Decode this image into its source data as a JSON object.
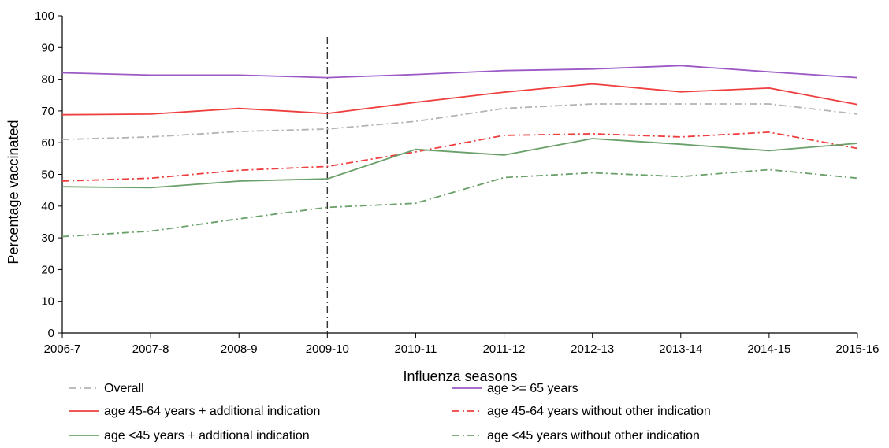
{
  "chart_data": {
    "type": "line",
    "title": "",
    "xlabel": "Influenza seasons",
    "ylabel": "Percentage vaccinated",
    "categories": [
      "2006-7",
      "2007-8",
      "2008-9",
      "2009-10",
      "2010-11",
      "2011-12",
      "2012-13",
      "2013-14",
      "2014-15",
      "2015-16"
    ],
    "ylim": [
      0,
      100
    ],
    "yticks": [
      0,
      10,
      20,
      30,
      40,
      50,
      60,
      70,
      80,
      90,
      100
    ],
    "grid": false,
    "legend_position": "bottom",
    "reference_line": {
      "category": "2009-10",
      "style": "dash-dot",
      "color": "#333333"
    },
    "series": [
      {
        "name": "Overall",
        "color": "#b3b3b3",
        "style": "dash-dot",
        "values": [
          61.0,
          61.8,
          63.5,
          64.3,
          66.7,
          70.8,
          72.2,
          72.2,
          72.2,
          69.0
        ]
      },
      {
        "name": "age >= 65 years",
        "color": "#9b59c6",
        "style": "solid",
        "values": [
          82.0,
          81.3,
          81.3,
          80.5,
          81.5,
          82.7,
          83.2,
          84.3,
          82.3,
          80.5
        ]
      },
      {
        "name": "age 45-64 years + additional indication",
        "color": "#ee3e3e",
        "style": "solid",
        "values": [
          68.8,
          69.0,
          70.8,
          69.2,
          72.7,
          75.9,
          78.5,
          76.0,
          77.2,
          72.0
        ]
      },
      {
        "name": "age 45-64 years without other indication",
        "color": "#ee3e3e",
        "style": "dash-dot",
        "values": [
          47.9,
          48.8,
          51.3,
          52.5,
          57.1,
          62.3,
          62.8,
          61.8,
          63.3,
          58.2
        ]
      },
      {
        "name": "age <45 years + additional indication",
        "color": "#6aa06a",
        "style": "solid",
        "values": [
          46.1,
          45.8,
          47.9,
          48.6,
          57.9,
          56.1,
          61.3,
          59.5,
          57.5,
          59.8
        ]
      },
      {
        "name": "age <45 years without other indication",
        "color": "#6aa06a",
        "style": "dash-dot",
        "values": [
          30.4,
          32.1,
          36.0,
          39.6,
          40.9,
          49.0,
          50.5,
          49.3,
          51.5,
          48.8
        ]
      }
    ]
  }
}
